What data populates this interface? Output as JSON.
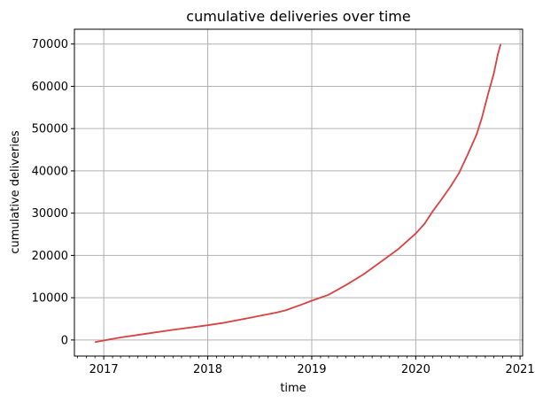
{
  "chart_data": {
    "type": "line",
    "title": "cumulative deliveries over time",
    "xlabel": "time",
    "ylabel": "cumulative deliveries",
    "x_ticks": [
      {
        "value": "2017-01-01",
        "label": "2017"
      },
      {
        "value": "2018-01-01",
        "label": "2018"
      },
      {
        "value": "2019-01-01",
        "label": "2019"
      },
      {
        "value": "2020-01-01",
        "label": "2020"
      },
      {
        "value": "2021-01-01",
        "label": "2021"
      }
    ],
    "y_ticks": [
      0,
      10000,
      20000,
      30000,
      40000,
      50000,
      60000,
      70000
    ],
    "xlim": [
      "2016-09-20",
      "2021-01-10"
    ],
    "ylim": [
      -3800,
      73500
    ],
    "grid": true,
    "line_color": "#d94040",
    "series": [
      {
        "points": [
          [
            "2016-12-01",
            -500
          ],
          [
            "2017-03-01",
            600
          ],
          [
            "2017-06-01",
            1500
          ],
          [
            "2017-09-01",
            2400
          ],
          [
            "2018-01-01",
            3500
          ],
          [
            "2018-03-01",
            4100
          ],
          [
            "2018-06-01",
            5300
          ],
          [
            "2018-09-01",
            6500
          ],
          [
            "2018-10-01",
            7000
          ],
          [
            "2018-12-01",
            8500
          ],
          [
            "2019-01-01",
            9300
          ],
          [
            "2019-03-01",
            10700
          ],
          [
            "2019-05-01",
            13000
          ],
          [
            "2019-07-01",
            15500
          ],
          [
            "2019-09-01",
            18500
          ],
          [
            "2019-11-01",
            21500
          ],
          [
            "2020-01-01",
            25200
          ],
          [
            "2020-02-01",
            27500
          ],
          [
            "2020-03-01",
            30500
          ],
          [
            "2020-04-01",
            33300
          ],
          [
            "2020-05-01",
            36200
          ],
          [
            "2020-06-01",
            39500
          ],
          [
            "2020-07-01",
            43800
          ],
          [
            "2020-08-01",
            48500
          ],
          [
            "2020-08-20",
            52500
          ],
          [
            "2020-09-10",
            58000
          ],
          [
            "2020-10-01",
            63000
          ],
          [
            "2020-10-15",
            67500
          ],
          [
            "2020-10-25",
            70000
          ]
        ]
      }
    ]
  }
}
